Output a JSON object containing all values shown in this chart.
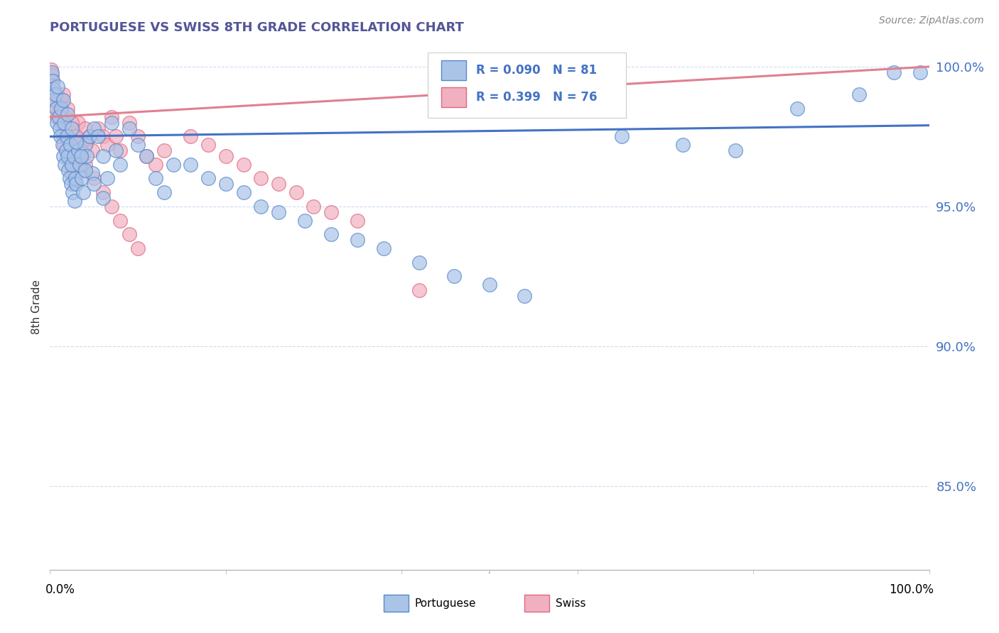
{
  "title": "PORTUGUESE VS SWISS 8TH GRADE CORRELATION CHART",
  "source": "Source: ZipAtlas.com",
  "ylabel": "8th Grade",
  "xlim": [
    0.0,
    1.0
  ],
  "ylim": [
    0.82,
    1.008
  ],
  "yticks": [
    0.85,
    0.9,
    0.95,
    1.0
  ],
  "ytick_labels": [
    "85.0%",
    "90.0%",
    "95.0%",
    "100.0%"
  ],
  "portuguese_color": "#aac4e8",
  "swiss_color": "#f0b0c0",
  "portuguese_edge": "#5588cc",
  "swiss_edge": "#e06880",
  "trend_portuguese": "#4472c4",
  "trend_swiss": "#e08090",
  "legend_line1": "R = 0.090   N = 81",
  "legend_line2": "R = 0.399   N = 76",
  "title_color": "#555599",
  "ytick_color": "#4472c4",
  "grid_color": "#c0d4ee",
  "source_color": "#888888"
}
